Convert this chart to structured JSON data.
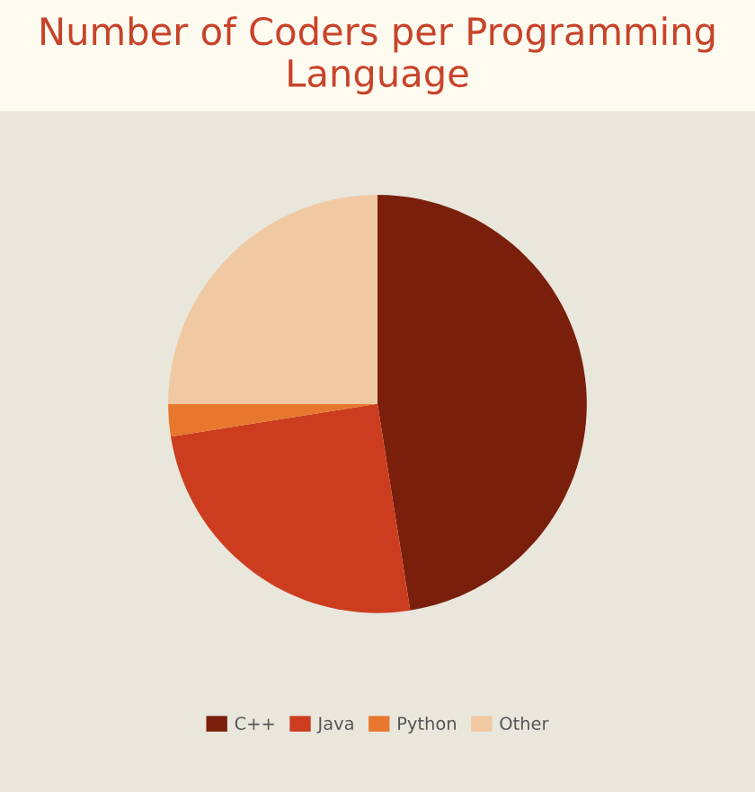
{
  "chart_data": {
    "type": "pie",
    "title": "Number of Coders per Programming Language",
    "categories": [
      "C++",
      "Java",
      "Python",
      "Other"
    ],
    "values": [
      47.5,
      25,
      2.5,
      25
    ],
    "colors": [
      "#7a1f0b",
      "#cc3d1f",
      "#e8772e",
      "#f0c9a3"
    ],
    "legend": "bottom"
  }
}
